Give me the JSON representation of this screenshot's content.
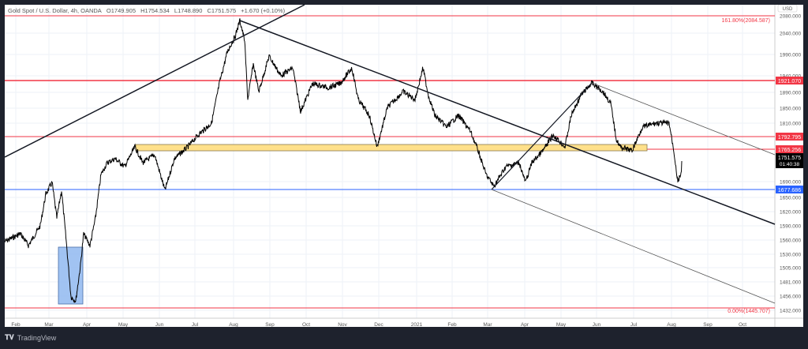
{
  "header": {
    "symbol": "Gold Spot / U.S. Dollar, 4h, OANDA",
    "open": "O1749.905",
    "high": "H1754.534",
    "low": "L1748.890",
    "close": "C1751.575",
    "change": "+1.670 (+0.10%)"
  },
  "price_axis": {
    "currency": "USD",
    "ticks": [
      "2080.000",
      "2040.000",
      "1990.000",
      "1940.000",
      "1890.000",
      "1850.000",
      "1810.000",
      "1690.000",
      "1650.000",
      "1620.000",
      "1590.000",
      "1560.000",
      "1530.000",
      "1505.000",
      "1481.000",
      "1456.000",
      "1432.000"
    ],
    "badges": {
      "r1": "1921.070",
      "r2": "1792.795",
      "r3": "1765.256",
      "last": "1751.575",
      "countdown": "01:40:38",
      "support": "1677.686"
    }
  },
  "fib_labels": {
    "top": "161.80%(2084.587)",
    "bottom": "0.00%(1445.707)"
  },
  "time_axis": [
    "Feb",
    "Mar",
    "Apr",
    "May",
    "Jun",
    "Jul",
    "Aug",
    "Sep",
    "Oct",
    "Nov",
    "Dec",
    "2021",
    "Feb",
    "Mar",
    "Apr",
    "May",
    "Jun",
    "Jul",
    "Aug",
    "Sep",
    "Oct"
  ],
  "footer": {
    "brand": "TradingView"
  },
  "colors": {
    "red_level": "#f23645",
    "blue_level": "#2962ff",
    "zone_fill": "#ffe08a",
    "box_fill": "#90b8f0",
    "price_line": "#000000"
  },
  "chart_data": {
    "type": "line",
    "title": "Gold Spot / U.S. Dollar, 4h, OANDA",
    "xlabel": "",
    "ylabel": "USD",
    "ylim": [
      1425,
      2100
    ],
    "grid": true,
    "x": [
      "2020-02",
      "2020-03",
      "2020-03-20",
      "2020-04",
      "2020-05",
      "2020-06",
      "2020-07",
      "2020-08-07",
      "2020-08-12",
      "2020-09",
      "2020-10",
      "2020-11",
      "2020-11-30",
      "2021-01-06",
      "2021-02",
      "2021-03-08",
      "2021-04",
      "2021-05",
      "2021-06-01",
      "2021-07",
      "2021-08-06",
      "2021-08-10"
    ],
    "series": [
      {
        "name": "XAUUSD 4h close (approx)",
        "values": [
          1570,
          1690,
          1455,
          1620,
          1720,
          1710,
          1800,
          2075,
          1880,
          1950,
          1900,
          1940,
          1770,
          1950,
          1830,
          1680,
          1730,
          1860,
          1915,
          1780,
          1680,
          1751
        ]
      }
    ],
    "horizontal_levels": [
      {
        "label": "161.80%",
        "value": 2084.587,
        "color": "red"
      },
      {
        "value": 1921.07,
        "color": "red"
      },
      {
        "value": 1792.795,
        "color": "red"
      },
      {
        "value": 1765.256,
        "color": "red",
        "note": "resistance zone (yellow)"
      },
      {
        "value": 1677.686,
        "color": "blue"
      },
      {
        "label": "0.00%",
        "value": 1445.707,
        "color": "red"
      }
    ],
    "annotations": [
      "Yellow horizontal zone ~1765-1775",
      "Blue rectangle highlighting March 2020 low",
      "Descending trendline from Aug 2020 high",
      "Descending channel from Jun 2021 high",
      "Rising trendline Mar-Jun 2021",
      "Long rising trendline from 2019"
    ],
    "last_price": 1751.575
  }
}
